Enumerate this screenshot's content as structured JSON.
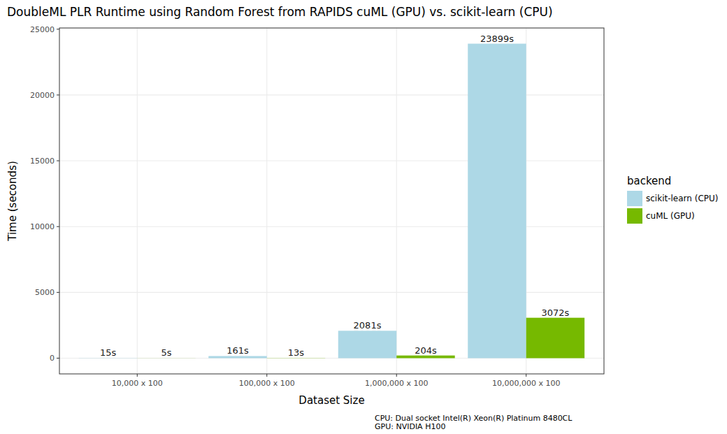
{
  "chart_data": {
    "type": "bar",
    "title": "DoubleML PLR Runtime using Random Forest from RAPIDS cuML (GPU) vs. scikit-learn (CPU)",
    "x_label": "Dataset Size",
    "y_label": "Time (seconds)",
    "legend_title": "backend",
    "caption": [
      "CPU: Dual socket Intel(R) Xeon(R) Platinum 8480CL",
      "GPU: NVIDIA H100"
    ],
    "categories": [
      "10,000 x 100",
      "100,000 x 100",
      "1,000,000 x 100",
      "10,000,000 x 100"
    ],
    "series": [
      {
        "name": "scikit-learn (CPU)",
        "color": "#add8e6",
        "values": [
          15,
          161,
          2081,
          23899
        ],
        "value_labels": [
          "15s",
          "161s",
          "2081s",
          "23899s"
        ]
      },
      {
        "name": "cuML (GPU)",
        "color": "#76b900",
        "values": [
          5,
          13,
          204,
          3072
        ],
        "value_labels": [
          "5s",
          "13s",
          "204s",
          "3072s"
        ]
      }
    ],
    "ylim": [
      -1195,
      25094
    ],
    "yticks": [
      0,
      5000,
      10000,
      15000,
      20000,
      25000
    ],
    "grid": true,
    "legend": "right",
    "data_labels": true
  }
}
